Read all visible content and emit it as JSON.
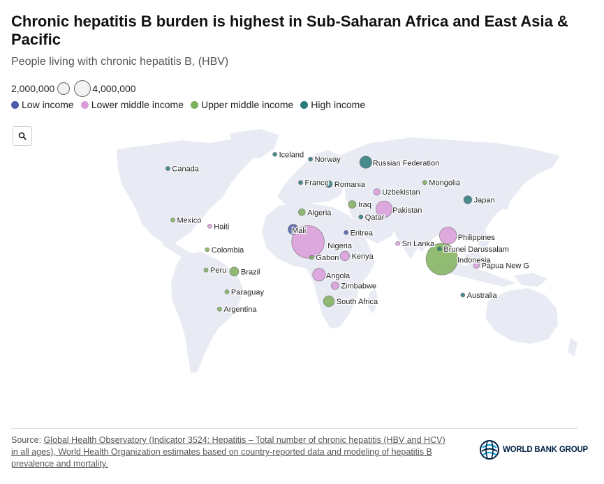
{
  "title": "Chronic hepatitis B burden is highest in Sub-Saharan Africa and East Asia & Pacific",
  "subtitle": "People living with chronic hepatitis B, (HBV)",
  "size_legend": {
    "small_label": "2,000,000",
    "large_label": "4,000,000"
  },
  "legend": [
    {
      "label": "Low income",
      "color": "#4a5aa8"
    },
    {
      "label": "Lower middle income",
      "color": "#d99cd9"
    },
    {
      "label": "Upper middle income",
      "color": "#7fb05a"
    },
    {
      "label": "High income",
      "color": "#2d7a7a"
    }
  ],
  "source": {
    "prefix": "Source: ",
    "link_text": "Global Health Observatory (Indicator 3524: Hepatitis – Total number of chronic hepatitis (HBV and HCV) in all ages), World Health Organization estimates based on country-reported data and modeling of hepatitis B prevalence and mortality."
  },
  "logo_text": "WORLD BANK GROUP",
  "chart_data": {
    "type": "bubble-map",
    "size_metric": "People living with chronic hepatitis B",
    "labeled_countries": [
      {
        "name": "Iceland",
        "group": "High income",
        "lon": -19,
        "lat": 65,
        "value": 2000
      },
      {
        "name": "Norway",
        "group": "High income",
        "lon": 10,
        "lat": 62,
        "value": 25000
      },
      {
        "name": "Russian Federation",
        "group": "High income",
        "lon": 55,
        "lat": 60,
        "value": 2500000
      },
      {
        "name": "Canada",
        "group": "High income",
        "lon": -106,
        "lat": 56,
        "value": 250000
      },
      {
        "name": "France",
        "group": "High income",
        "lon": 2,
        "lat": 47,
        "value": 200000
      },
      {
        "name": "Mongolia",
        "group": "Upper middle income",
        "lon": 103,
        "lat": 47,
        "value": 250000
      },
      {
        "name": "Romania",
        "group": "High income",
        "lon": 25,
        "lat": 46,
        "value": 800000
      },
      {
        "name": "Uzbekistan",
        "group": "Lower middle income",
        "lon": 64,
        "lat": 41,
        "value": 700000
      },
      {
        "name": "Algeria",
        "group": "Upper middle income",
        "lon": 3,
        "lat": 28,
        "value": 800000
      },
      {
        "name": "Japan",
        "group": "High income",
        "lon": 138,
        "lat": 36,
        "value": 1100000
      },
      {
        "name": "Iraq",
        "group": "Upper middle income",
        "lon": 44,
        "lat": 33,
        "value": 1000000
      },
      {
        "name": "Pakistan",
        "group": "Lower middle income",
        "lon": 70,
        "lat": 30,
        "value": 4500000
      },
      {
        "name": "Qatar",
        "group": "High income",
        "lon": 51,
        "lat": 25,
        "value": 50000
      },
      {
        "name": "Mexico",
        "group": "Upper middle income",
        "lon": -102,
        "lat": 23,
        "value": 100000
      },
      {
        "name": "Haiti",
        "group": "Lower middle income",
        "lon": -72,
        "lat": 19,
        "value": 200000
      },
      {
        "name": "Eritrea",
        "group": "Low income",
        "lon": 39,
        "lat": 15,
        "value": 250000
      },
      {
        "name": "Mali",
        "group": "Low income",
        "lon": -4,
        "lat": 17,
        "value": 1800000
      },
      {
        "name": "Philippines",
        "group": "Lower middle income",
        "lon": 122,
        "lat": 13,
        "value": 5000000
      },
      {
        "name": "Nigeria",
        "group": "Lower middle income",
        "lon": 8,
        "lat": 9,
        "value": 18000000
      },
      {
        "name": "Sri Lanka",
        "group": "Lower middle income",
        "lon": 81,
        "lat": 8,
        "value": 150000
      },
      {
        "name": "Colombia",
        "group": "Upper middle income",
        "lon": -74,
        "lat": 4,
        "value": 200000
      },
      {
        "name": "Brunei Darussalam",
        "group": "High income",
        "lon": 115,
        "lat": 4.5,
        "value": 10000
      },
      {
        "name": "Gabon",
        "group": "Upper middle income",
        "lon": 11,
        "lat": -1,
        "value": 150000
      },
      {
        "name": "Kenya",
        "group": "Lower middle income",
        "lon": 38,
        "lat": 0,
        "value": 1500000
      },
      {
        "name": "Indonesia",
        "group": "Upper middle income",
        "lon": 117,
        "lat": -2,
        "value": 17000000
      },
      {
        "name": "Peru",
        "group": "Upper middle income",
        "lon": -75,
        "lat": -9,
        "value": 150000
      },
      {
        "name": "Angola",
        "group": "Lower middle income",
        "lon": 17,
        "lat": -12,
        "value": 2800000
      },
      {
        "name": "Papua New G",
        "group": "Lower middle income",
        "lon": 145,
        "lat": -6,
        "value": 600000
      },
      {
        "name": "Brazil",
        "group": "Upper middle income",
        "lon": -52,
        "lat": -10,
        "value": 1400000
      },
      {
        "name": "Zimbabwe",
        "group": "Lower middle income",
        "lon": 30,
        "lat": -19,
        "value": 1000000
      },
      {
        "name": "Paraguay",
        "group": "Upper middle income",
        "lon": -58,
        "lat": -23,
        "value": 50000
      },
      {
        "name": "South Africa",
        "group": "Upper middle income",
        "lon": 25,
        "lat": -29,
        "value": 2000000
      },
      {
        "name": "Australia",
        "group": "High income",
        "lon": 134,
        "lat": -25,
        "value": 200000
      },
      {
        "name": "Argentina",
        "group": "Upper middle income",
        "lon": -64,
        "lat": -34,
        "value": 50000
      }
    ]
  }
}
